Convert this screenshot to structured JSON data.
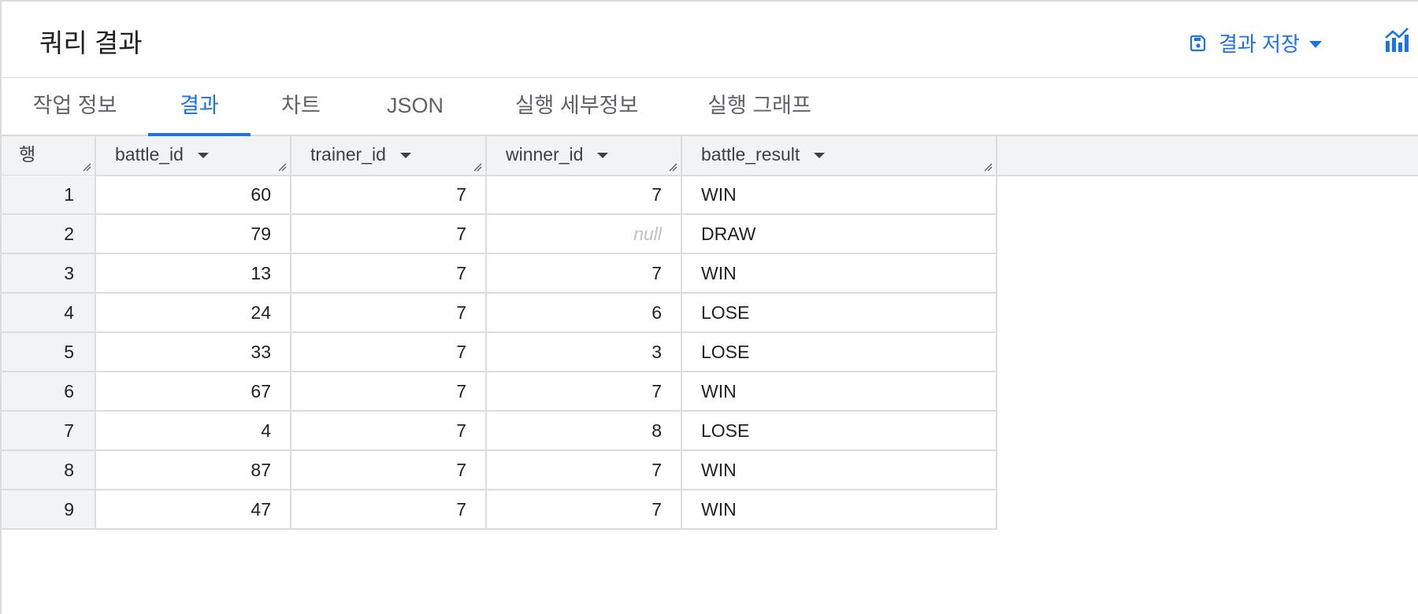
{
  "header": {
    "title": "쿼리 결과",
    "save_label": "결과 저장"
  },
  "tabs": [
    {
      "label": "작업 정보",
      "active": false
    },
    {
      "label": "결과",
      "active": true
    },
    {
      "label": "차트",
      "active": false
    },
    {
      "label": "JSON",
      "active": false
    },
    {
      "label": "실행 세부정보",
      "active": false
    },
    {
      "label": "실행 그래프",
      "active": false
    }
  ],
  "table": {
    "row_header": "행",
    "columns": [
      "battle_id",
      "trainer_id",
      "winner_id",
      "battle_result"
    ],
    "rows": [
      {
        "n": "1",
        "battle_id": "60",
        "trainer_id": "7",
        "winner_id": "7",
        "battle_result": "WIN"
      },
      {
        "n": "2",
        "battle_id": "79",
        "trainer_id": "7",
        "winner_id": "null",
        "battle_result": "DRAW"
      },
      {
        "n": "3",
        "battle_id": "13",
        "trainer_id": "7",
        "winner_id": "7",
        "battle_result": "WIN"
      },
      {
        "n": "4",
        "battle_id": "24",
        "trainer_id": "7",
        "winner_id": "6",
        "battle_result": "LOSE"
      },
      {
        "n": "5",
        "battle_id": "33",
        "trainer_id": "7",
        "winner_id": "3",
        "battle_result": "LOSE"
      },
      {
        "n": "6",
        "battle_id": "67",
        "trainer_id": "7",
        "winner_id": "7",
        "battle_result": "WIN"
      },
      {
        "n": "7",
        "battle_id": "4",
        "trainer_id": "7",
        "winner_id": "8",
        "battle_result": "LOSE"
      },
      {
        "n": "8",
        "battle_id": "87",
        "trainer_id": "7",
        "winner_id": "7",
        "battle_result": "WIN"
      },
      {
        "n": "9",
        "battle_id": "47",
        "trainer_id": "7",
        "winner_id": "7",
        "battle_result": "WIN"
      }
    ]
  },
  "colors": {
    "accent": "#1a73e8",
    "border": "#dadce0",
    "header_bg": "#f1f3f4"
  },
  "icons": {
    "save": "floppy-disk-icon",
    "explore": "chart-explore-icon",
    "sort": "sort-arrow-icon"
  }
}
